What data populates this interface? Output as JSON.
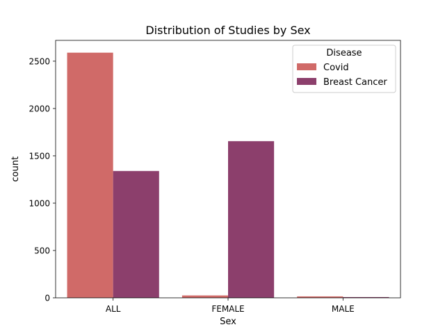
{
  "chart_data": {
    "type": "bar",
    "title": "Distribution of Studies by Sex",
    "xlabel": "Sex",
    "ylabel": "count",
    "categories": [
      "ALL",
      "FEMALE",
      "MALE"
    ],
    "series": [
      {
        "name": "Covid",
        "values": [
          2590,
          25,
          15
        ],
        "color": "#d06a68"
      },
      {
        "name": "Breast Cancer",
        "values": [
          1340,
          1655,
          8
        ],
        "color": "#8c3f6c"
      }
    ],
    "ylim": [
      0,
      2720
    ],
    "yticks": [
      0,
      500,
      1000,
      1500,
      2000,
      2500
    ],
    "legend": {
      "title": "Disease",
      "placement": "top-right"
    },
    "grid": false
  }
}
